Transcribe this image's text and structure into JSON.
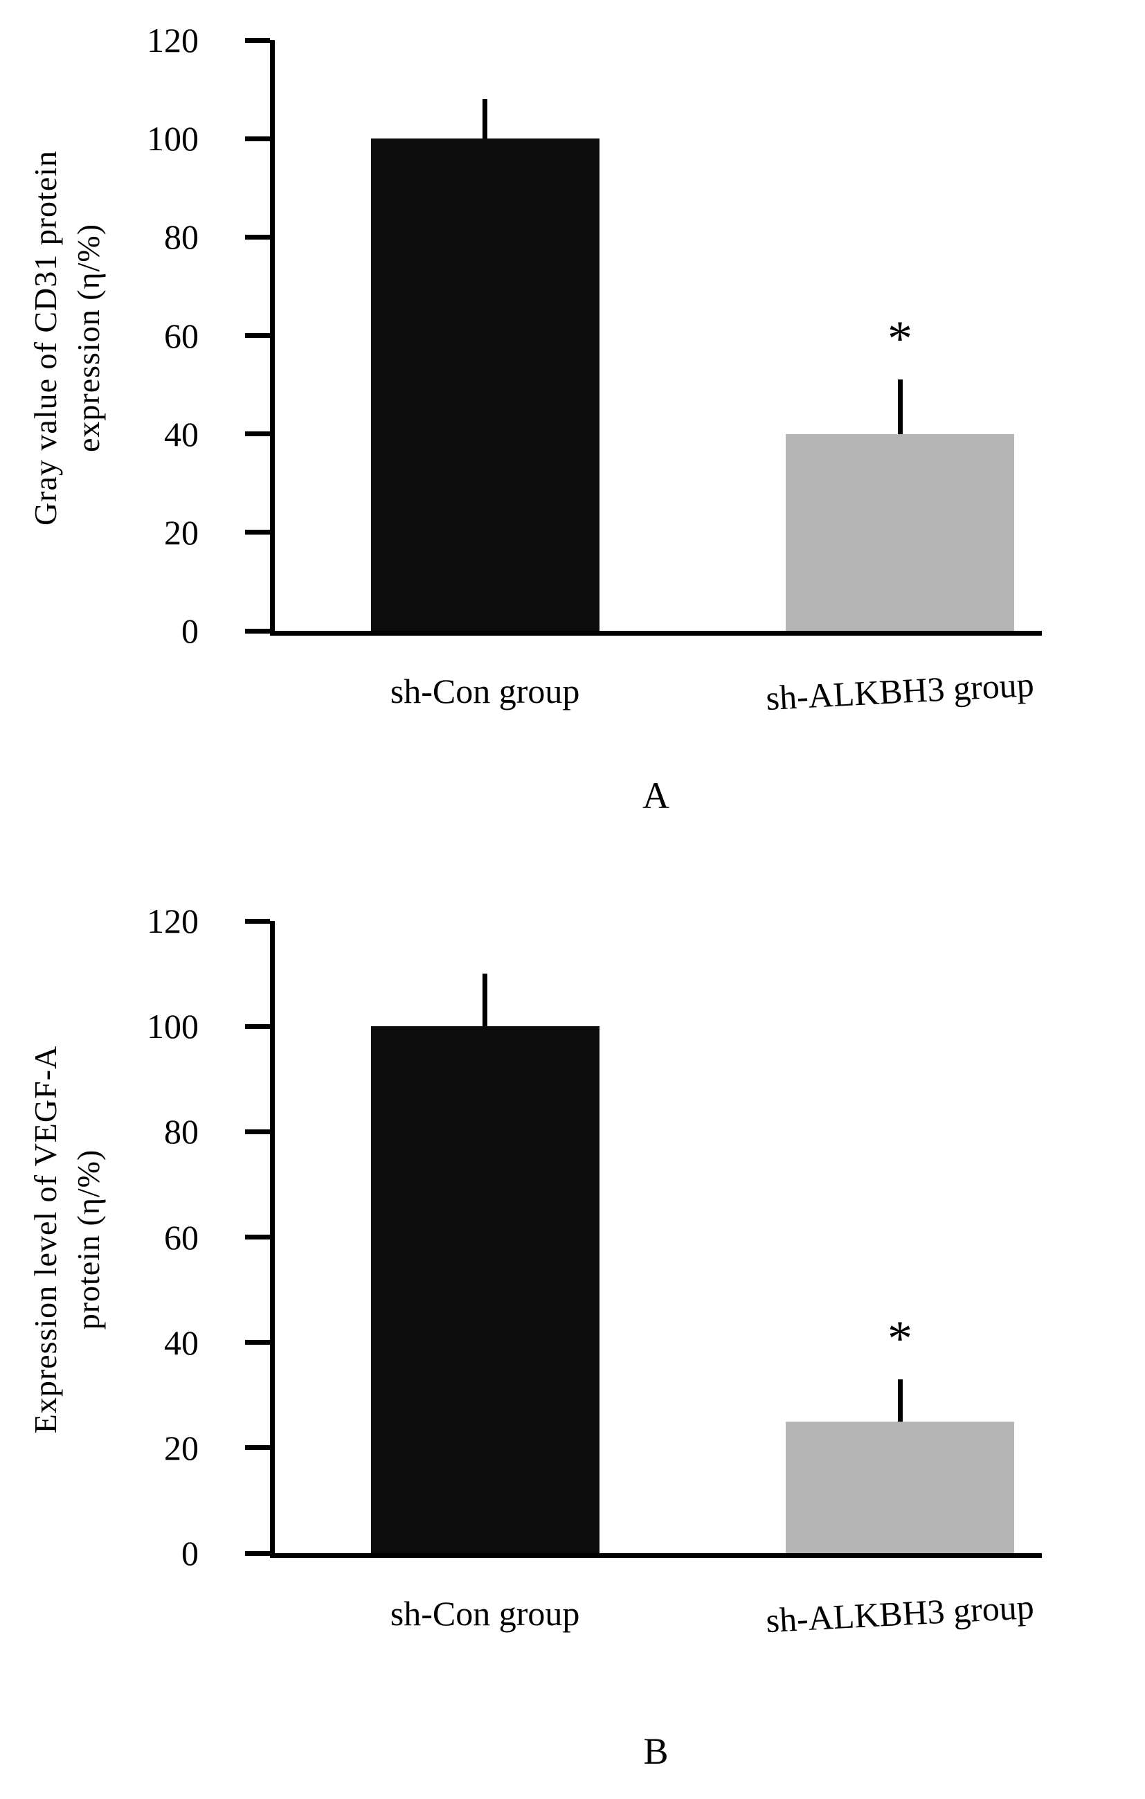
{
  "page": {
    "background": "#ffffff",
    "text_color": "#000000"
  },
  "chart_data": [
    {
      "type": "bar",
      "panel_label": "A",
      "title": "",
      "ylabel": "Gray value of CD31 protein expression (η/%)",
      "ylabel_line1": "Gray value of CD31 protein",
      "ylabel_line2": "expression (η/%)",
      "xlabel": "",
      "categories": [
        "sh-Con group",
        "sh-ALKBH3 group"
      ],
      "values": [
        100,
        40
      ],
      "errors": [
        8,
        11
      ],
      "annotations": [
        "",
        "*"
      ],
      "bar_colors": [
        "#0c0c0c",
        "#b5b5b5"
      ],
      "axis_color": "#000000",
      "yticks": [
        0,
        20,
        40,
        60,
        80,
        100,
        120
      ],
      "ylim": [
        0,
        120
      ],
      "grid": false,
      "legend": false
    },
    {
      "type": "bar",
      "panel_label": "B",
      "title": "",
      "ylabel": "Expression level of VEGF-A protein (η/%)",
      "ylabel_line1": "Expression level of VEGF-A",
      "ylabel_line2": "protein (η/%)",
      "xlabel": "",
      "categories": [
        "sh-Con group",
        "sh-ALKBH3 group"
      ],
      "values": [
        100,
        25
      ],
      "errors": [
        10,
        8
      ],
      "annotations": [
        "",
        "*"
      ],
      "bar_colors": [
        "#0c0c0c",
        "#b5b5b5"
      ],
      "axis_color": "#000000",
      "yticks": [
        0,
        20,
        40,
        60,
        80,
        100,
        120
      ],
      "ylim": [
        0,
        120
      ],
      "grid": false,
      "legend": false
    }
  ]
}
